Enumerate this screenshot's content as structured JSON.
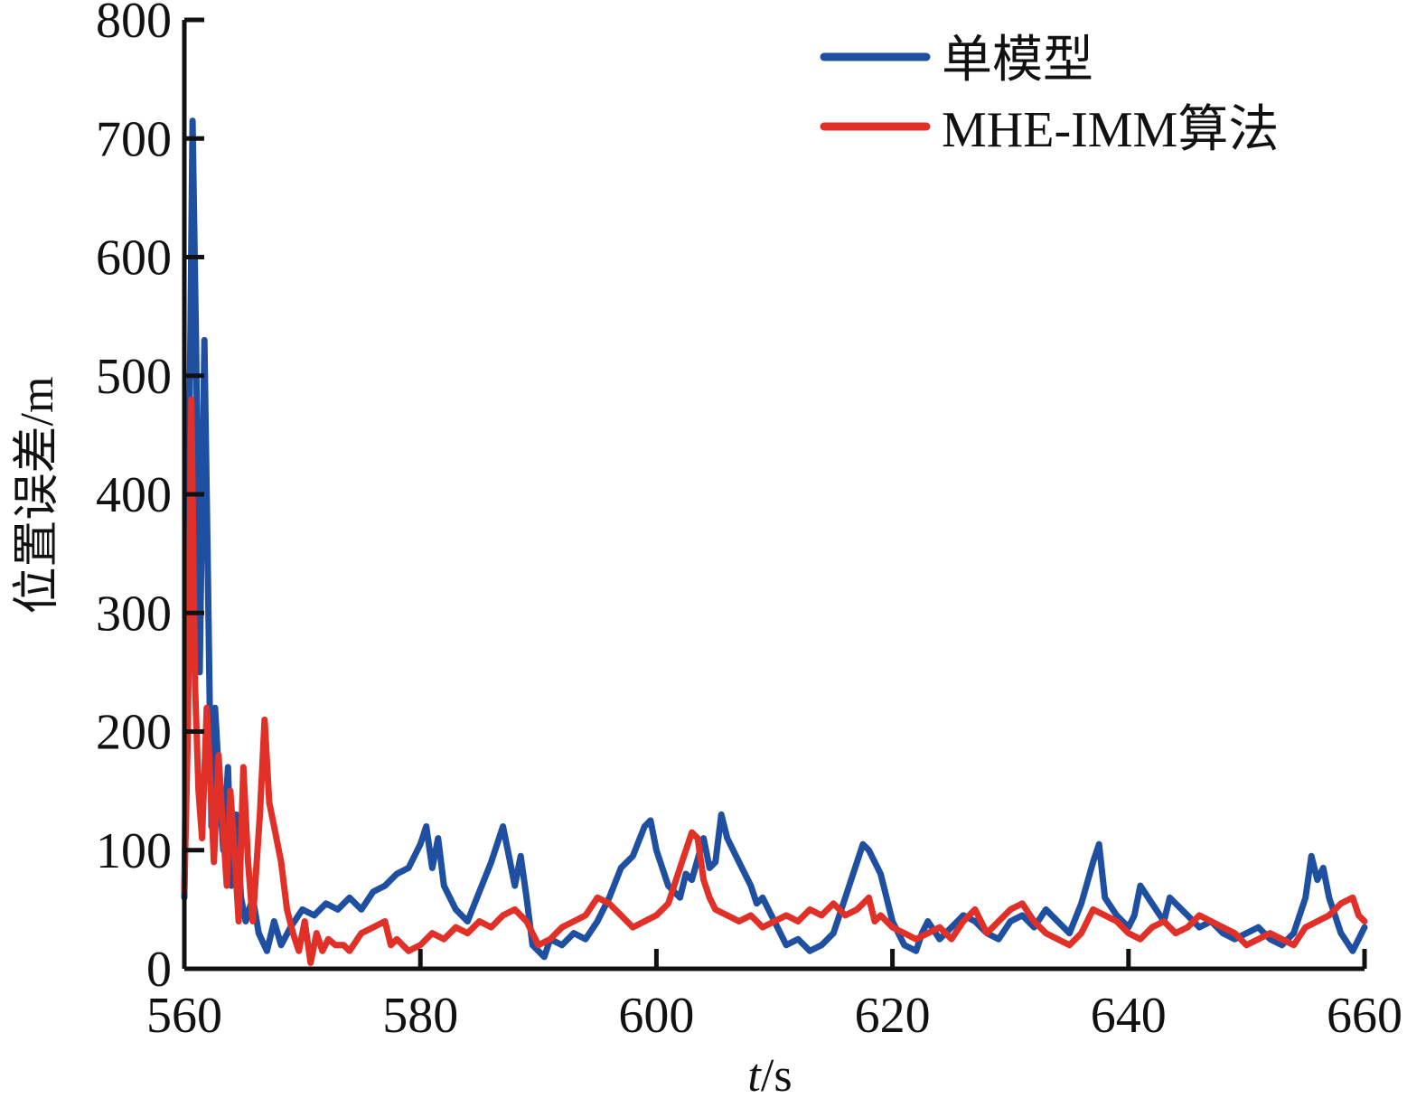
{
  "chart_data": {
    "type": "line",
    "xlabel_italic": "t",
    "xlabel_unit": "/s",
    "ylabel": "位置误差/m",
    "xlim": [
      560,
      660
    ],
    "ylim": [
      0,
      800
    ],
    "xticks": [
      "560",
      "580",
      "600",
      "620",
      "640",
      "660"
    ],
    "yticks": [
      "0",
      "100",
      "200",
      "300",
      "400",
      "500",
      "600",
      "700",
      "800"
    ],
    "legend_position": "top-right",
    "grid": false,
    "series": [
      {
        "name": "单模型",
        "color": "#1f4fa0",
        "points": [
          [
            560,
            60
          ],
          [
            560.4,
            420
          ],
          [
            560.7,
            715
          ],
          [
            561.0,
            520
          ],
          [
            561.3,
            250
          ],
          [
            561.7,
            530
          ],
          [
            562.0,
            330
          ],
          [
            562.3,
            120
          ],
          [
            562.6,
            220
          ],
          [
            563.0,
            150
          ],
          [
            563.3,
            100
          ],
          [
            563.7,
            170
          ],
          [
            564.0,
            70
          ],
          [
            564.4,
            130
          ],
          [
            564.8,
            60
          ],
          [
            565.2,
            40
          ],
          [
            565.8,
            60
          ],
          [
            566.3,
            30
          ],
          [
            567.0,
            15
          ],
          [
            567.6,
            40
          ],
          [
            568.2,
            20
          ],
          [
            569,
            35
          ],
          [
            570,
            50
          ],
          [
            571,
            45
          ],
          [
            572,
            55
          ],
          [
            573,
            50
          ],
          [
            574,
            60
          ],
          [
            575,
            50
          ],
          [
            576,
            65
          ],
          [
            577,
            70
          ],
          [
            578,
            80
          ],
          [
            579,
            85
          ],
          [
            580,
            105
          ],
          [
            580.5,
            120
          ],
          [
            581,
            85
          ],
          [
            581.5,
            110
          ],
          [
            582,
            70
          ],
          [
            583,
            50
          ],
          [
            584,
            40
          ],
          [
            585,
            65
          ],
          [
            586,
            90
          ],
          [
            587,
            120
          ],
          [
            587.5,
            95
          ],
          [
            588,
            70
          ],
          [
            588.5,
            95
          ],
          [
            589,
            60
          ],
          [
            589.5,
            20
          ],
          [
            590.5,
            10
          ],
          [
            591,
            25
          ],
          [
            592,
            20
          ],
          [
            593,
            30
          ],
          [
            594,
            25
          ],
          [
            595,
            40
          ],
          [
            596,
            60
          ],
          [
            597,
            85
          ],
          [
            598,
            95
          ],
          [
            599,
            120
          ],
          [
            599.5,
            125
          ],
          [
            600,
            100
          ],
          [
            601,
            70
          ],
          [
            602,
            60
          ],
          [
            602.5,
            80
          ],
          [
            603,
            75
          ],
          [
            604,
            110
          ],
          [
            604.5,
            85
          ],
          [
            605,
            90
          ],
          [
            605.5,
            130
          ],
          [
            606,
            110
          ],
          [
            607,
            90
          ],
          [
            608,
            70
          ],
          [
            608.5,
            55
          ],
          [
            609,
            60
          ],
          [
            610,
            40
          ],
          [
            611,
            20
          ],
          [
            612,
            25
          ],
          [
            613,
            15
          ],
          [
            614,
            20
          ],
          [
            615,
            30
          ],
          [
            616,
            60
          ],
          [
            617,
            90
          ],
          [
            617.5,
            105
          ],
          [
            618,
            100
          ],
          [
            619,
            80
          ],
          [
            619.5,
            60
          ],
          [
            620,
            40
          ],
          [
            621,
            20
          ],
          [
            622,
            15
          ],
          [
            622.5,
            30
          ],
          [
            623,
            40
          ],
          [
            624,
            25
          ],
          [
            625,
            35
          ],
          [
            626,
            45
          ],
          [
            627,
            40
          ],
          [
            628,
            30
          ],
          [
            629,
            25
          ],
          [
            630,
            40
          ],
          [
            631,
            45
          ],
          [
            632,
            35
          ],
          [
            633,
            50
          ],
          [
            634,
            40
          ],
          [
            635,
            30
          ],
          [
            636,
            55
          ],
          [
            637,
            90
          ],
          [
            637.5,
            105
          ],
          [
            638,
            60
          ],
          [
            639,
            45
          ],
          [
            640,
            35
          ],
          [
            640.5,
            45
          ],
          [
            641,
            70
          ],
          [
            642,
            55
          ],
          [
            643,
            40
          ],
          [
            643.5,
            60
          ],
          [
            644,
            55
          ],
          [
            645,
            45
          ],
          [
            646,
            35
          ],
          [
            647,
            40
          ],
          [
            648,
            30
          ],
          [
            649,
            25
          ],
          [
            650,
            30
          ],
          [
            651,
            35
          ],
          [
            652,
            25
          ],
          [
            653,
            20
          ],
          [
            654,
            30
          ],
          [
            655,
            60
          ],
          [
            655.5,
            95
          ],
          [
            656,
            75
          ],
          [
            656.5,
            85
          ],
          [
            657,
            60
          ],
          [
            658,
            30
          ],
          [
            659,
            15
          ],
          [
            659.5,
            25
          ],
          [
            660,
            35
          ]
        ]
      },
      {
        "name": "MHE-IMM算法",
        "color": "#e03028",
        "points": [
          [
            560,
            65
          ],
          [
            560.3,
            200
          ],
          [
            560.6,
            480
          ],
          [
            560.9,
            240
          ],
          [
            561.2,
            150
          ],
          [
            561.5,
            110
          ],
          [
            561.9,
            220
          ],
          [
            562.2,
            160
          ],
          [
            562.5,
            90
          ],
          [
            562.9,
            180
          ],
          [
            563.2,
            130
          ],
          [
            563.6,
            70
          ],
          [
            563.9,
            150
          ],
          [
            564.3,
            90
          ],
          [
            564.6,
            40
          ],
          [
            565,
            170
          ],
          [
            565.4,
            90
          ],
          [
            565.8,
            40
          ],
          [
            566.4,
            130
          ],
          [
            566.8,
            210
          ],
          [
            567.2,
            140
          ],
          [
            567.6,
            120
          ],
          [
            568.2,
            90
          ],
          [
            568.7,
            50
          ],
          [
            569.2,
            30
          ],
          [
            569.7,
            15
          ],
          [
            570.2,
            40
          ],
          [
            570.7,
            5
          ],
          [
            571.2,
            30
          ],
          [
            571.7,
            15
          ],
          [
            572.2,
            25
          ],
          [
            572.8,
            20
          ],
          [
            573.5,
            20
          ],
          [
            574,
            15
          ],
          [
            575,
            30
          ],
          [
            576,
            35
          ],
          [
            577,
            40
          ],
          [
            577.5,
            20
          ],
          [
            578,
            25
          ],
          [
            579,
            15
          ],
          [
            580,
            20
          ],
          [
            581,
            30
          ],
          [
            582,
            25
          ],
          [
            583,
            35
          ],
          [
            584,
            30
          ],
          [
            585,
            40
          ],
          [
            586,
            35
          ],
          [
            587,
            45
          ],
          [
            588,
            50
          ],
          [
            589,
            40
          ],
          [
            590,
            20
          ],
          [
            591,
            25
          ],
          [
            592,
            35
          ],
          [
            593,
            40
          ],
          [
            594,
            45
          ],
          [
            595,
            60
          ],
          [
            596,
            55
          ],
          [
            597,
            45
          ],
          [
            598,
            35
          ],
          [
            599,
            40
          ],
          [
            600,
            45
          ],
          [
            601,
            55
          ],
          [
            602,
            85
          ],
          [
            603,
            115
          ],
          [
            603.5,
            110
          ],
          [
            604,
            75
          ],
          [
            604.5,
            60
          ],
          [
            605,
            50
          ],
          [
            606,
            45
          ],
          [
            607,
            40
          ],
          [
            608,
            45
          ],
          [
            609,
            35
          ],
          [
            610,
            40
          ],
          [
            611,
            45
          ],
          [
            612,
            40
          ],
          [
            613,
            50
          ],
          [
            614,
            45
          ],
          [
            615,
            55
          ],
          [
            616,
            45
          ],
          [
            617,
            50
          ],
          [
            618,
            60
          ],
          [
            618.5,
            40
          ],
          [
            619,
            45
          ],
          [
            620,
            35
          ],
          [
            621,
            30
          ],
          [
            622,
            25
          ],
          [
            623,
            30
          ],
          [
            624,
            35
          ],
          [
            625,
            25
          ],
          [
            626,
            40
          ],
          [
            627,
            50
          ],
          [
            628,
            30
          ],
          [
            629,
            40
          ],
          [
            630,
            50
          ],
          [
            631,
            55
          ],
          [
            632,
            40
          ],
          [
            633,
            30
          ],
          [
            634,
            25
          ],
          [
            635,
            20
          ],
          [
            636,
            30
          ],
          [
            637,
            50
          ],
          [
            638,
            45
          ],
          [
            639,
            40
          ],
          [
            640,
            30
          ],
          [
            641,
            25
          ],
          [
            642,
            35
          ],
          [
            643,
            40
          ],
          [
            644,
            30
          ],
          [
            645,
            35
          ],
          [
            646,
            45
          ],
          [
            647,
            40
          ],
          [
            648,
            35
          ],
          [
            649,
            30
          ],
          [
            650,
            20
          ],
          [
            651,
            25
          ],
          [
            652,
            30
          ],
          [
            653,
            25
          ],
          [
            654,
            20
          ],
          [
            655,
            35
          ],
          [
            656,
            40
          ],
          [
            657,
            45
          ],
          [
            658,
            55
          ],
          [
            659,
            60
          ],
          [
            659.5,
            45
          ],
          [
            660,
            40
          ]
        ]
      }
    ]
  }
}
